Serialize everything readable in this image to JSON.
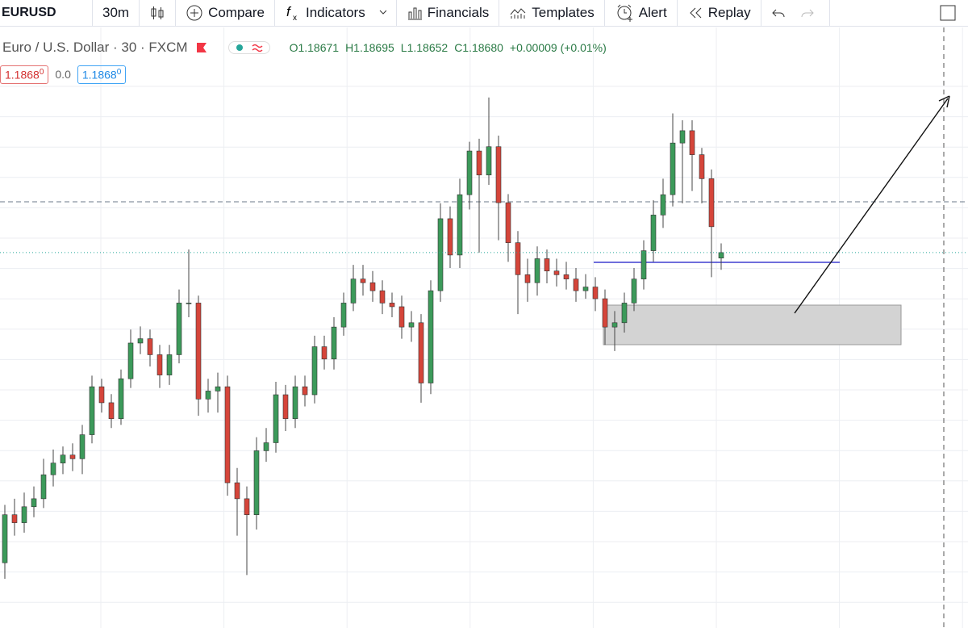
{
  "toolbar": {
    "symbol": "EURUSD",
    "interval": "30m",
    "compare": "Compare",
    "indicators": "Indicators",
    "financials": "Financials",
    "templates": "Templates",
    "alert": "Alert",
    "replay": "Replay"
  },
  "header": {
    "title": "Euro / U.S. Dollar · 30 · FXCM",
    "ohlc": [
      "O1.18671",
      "H1.18695",
      "L1.18652",
      "C1.18680"
    ],
    "change": "+0.00009 (+0.01%)",
    "sell_price": "1.1868",
    "sell_price_small": "0",
    "spread": "0.0",
    "buy_price": "1.1868",
    "buy_price_small": "0"
  },
  "chart_data": {
    "type": "candlestick",
    "up_color": "#3c9a5a",
    "down_color": "#d5453a",
    "ylim": [
      1.1807,
      1.1895
    ],
    "grid": true,
    "ohlc": [
      [
        1.18176,
        1.1827,
        1.1815,
        1.18254
      ],
      [
        1.18254,
        1.1828,
        1.1822,
        1.18241
      ],
      [
        1.18241,
        1.1829,
        1.18225,
        1.18267
      ],
      [
        1.18267,
        1.183,
        1.1825,
        1.1828
      ],
      [
        1.1828,
        1.18345,
        1.18265,
        1.18319
      ],
      [
        1.18319,
        1.1836,
        1.183,
        1.18338
      ],
      [
        1.18338,
        1.18365,
        1.1832,
        1.18351
      ],
      [
        1.18351,
        1.1837,
        1.18325,
        1.18345
      ],
      [
        1.18345,
        1.184,
        1.1832,
        1.18384
      ],
      [
        1.18384,
        1.1848,
        1.1837,
        1.18462
      ],
      [
        1.18462,
        1.18475,
        1.1842,
        1.18436
      ],
      [
        1.18436,
        1.1845,
        1.18395,
        1.1841
      ],
      [
        1.1841,
        1.1849,
        1.184,
        1.18475
      ],
      [
        1.18475,
        1.18555,
        1.1846,
        1.18533
      ],
      [
        1.18533,
        1.1856,
        1.18515,
        1.1854
      ],
      [
        1.1854,
        1.18555,
        1.18495,
        1.18514
      ],
      [
        1.18514,
        1.1853,
        1.1846,
        1.18481
      ],
      [
        1.18481,
        1.1853,
        1.18465,
        1.18514
      ],
      [
        1.18514,
        1.1862,
        1.185,
        1.18598
      ],
      [
        1.18598,
        1.18685,
        1.18575,
        1.18598
      ],
      [
        1.18598,
        1.1861,
        1.18415,
        1.18442
      ],
      [
        1.18442,
        1.18475,
        1.1842,
        1.18455
      ],
      [
        1.18455,
        1.18485,
        1.1842,
        1.18462
      ],
      [
        1.18462,
        1.1848,
        1.18285,
        1.18306
      ],
      [
        1.18306,
        1.1833,
        1.1822,
        1.1828
      ],
      [
        1.1828,
        1.183,
        1.18156,
        1.18254
      ],
      [
        1.18254,
        1.1838,
        1.1823,
        1.18358
      ],
      [
        1.18358,
        1.18395,
        1.1834,
        1.18371
      ],
      [
        1.18371,
        1.1847,
        1.18355,
        1.18449
      ],
      [
        1.18449,
        1.18465,
        1.1839,
        1.1841
      ],
      [
        1.1841,
        1.1848,
        1.18395,
        1.18462
      ],
      [
        1.18462,
        1.1848,
        1.1843,
        1.18449
      ],
      [
        1.18449,
        1.18545,
        1.18435,
        1.18527
      ],
      [
        1.18527,
        1.18545,
        1.1849,
        1.18507
      ],
      [
        1.18507,
        1.18575,
        1.1849,
        1.18559
      ],
      [
        1.18559,
        1.18615,
        1.18545,
        1.18598
      ],
      [
        1.18598,
        1.1866,
        1.18585,
        1.18637
      ],
      [
        1.18637,
        1.1866,
        1.1861,
        1.18631
      ],
      [
        1.18631,
        1.1865,
        1.186,
        1.18618
      ],
      [
        1.18618,
        1.18635,
        1.1858,
        1.18598
      ],
      [
        1.18598,
        1.18615,
        1.18575,
        1.18592
      ],
      [
        1.18592,
        1.1861,
        1.1854,
        1.18559
      ],
      [
        1.18559,
        1.18585,
        1.18535,
        1.18566
      ],
      [
        1.18566,
        1.1858,
        1.18436,
        1.18468
      ],
      [
        1.18468,
        1.18635,
        1.1845,
        1.18618
      ],
      [
        1.18618,
        1.1876,
        1.186,
        1.18735
      ],
      [
        1.18735,
        1.18755,
        1.18655,
        1.18676
      ],
      [
        1.18676,
        1.188,
        1.18655,
        1.18774
      ],
      [
        1.18774,
        1.1886,
        1.1875,
        1.18845
      ],
      [
        1.18845,
        1.18865,
        1.1868,
        1.18806
      ],
      [
        1.18806,
        1.18932,
        1.1879,
        1.18852
      ],
      [
        1.18852,
        1.1887,
        1.187,
        1.18761
      ],
      [
        1.18761,
        1.18775,
        1.18665,
        1.18696
      ],
      [
        1.18696,
        1.18715,
        1.1858,
        1.18644
      ],
      [
        1.18644,
        1.1867,
        1.186,
        1.18631
      ],
      [
        1.18631,
        1.1869,
        1.1861,
        1.1867
      ],
      [
        1.1867,
        1.18685,
        1.1863,
        1.1865
      ],
      [
        1.1865,
        1.1867,
        1.18625,
        1.18644
      ],
      [
        1.18644,
        1.18665,
        1.1862,
        1.18637
      ],
      [
        1.18637,
        1.18655,
        1.186,
        1.18618
      ],
      [
        1.18618,
        1.18645,
        1.18605,
        1.18624
      ],
      [
        1.18624,
        1.1864,
        1.18585,
        1.18605
      ],
      [
        1.18605,
        1.1862,
        1.1853,
        1.18559
      ],
      [
        1.18559,
        1.18585,
        1.1852,
        1.18566
      ],
      [
        1.18566,
        1.18615,
        1.1855,
        1.18598
      ],
      [
        1.18598,
        1.18655,
        1.18585,
        1.18637
      ],
      [
        1.18637,
        1.187,
        1.1862,
        1.18683
      ],
      [
        1.18683,
        1.18765,
        1.18665,
        1.18741
      ],
      [
        1.18741,
        1.188,
        1.1872,
        1.18774
      ],
      [
        1.18774,
        1.18906,
        1.18755,
        1.18858
      ],
      [
        1.18858,
        1.18895,
        1.1876,
        1.18878
      ],
      [
        1.18878,
        1.18895,
        1.1878,
        1.18839
      ],
      [
        1.18839,
        1.1885,
        1.1876,
        1.188
      ],
      [
        1.188,
        1.18815,
        1.1864,
        1.18722
      ],
      [
        1.18671,
        1.18695,
        1.18652,
        1.1868
      ]
    ]
  }
}
